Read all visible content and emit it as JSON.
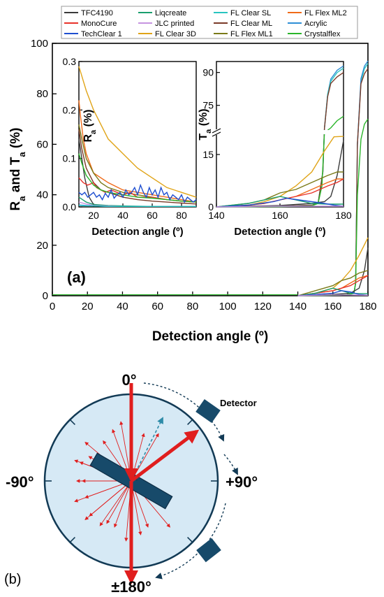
{
  "chart_data": [
    {
      "type": "line",
      "panel_label": "(a)",
      "xlabel": "Detection angle (º)",
      "ylabel_main": "R",
      "ylabel_sub_a": "a",
      "ylabel_mid": " and T",
      "ylabel_sub_b": "a",
      "ylabel_end": " (%)",
      "xlim": [
        0,
        180
      ],
      "ylim": [
        0,
        100
      ],
      "xticks": [
        "0",
        "20",
        "40",
        "60",
        "80",
        "100",
        "120",
        "140",
        "160",
        "180"
      ],
      "yticks": [
        "0",
        "20",
        "40",
        "60",
        "80",
        "100"
      ],
      "legend": [
        {
          "name": "TFC4190",
          "color": "#3a3a3a"
        },
        {
          "name": "Liqcreate",
          "color": "#1a9e6e"
        },
        {
          "name": "FL Clear SL",
          "color": "#28c4c0"
        },
        {
          "name": "FL Flex ML2",
          "color": "#f06a18"
        },
        {
          "name": "MonoCure",
          "color": "#e8322a"
        },
        {
          "name": "JLC printed",
          "color": "#c694e0"
        },
        {
          "name": "FL Clear ML",
          "color": "#7a3a28"
        },
        {
          "name": "Acrylic",
          "color": "#2e8ed6"
        },
        {
          "name": "TechClear 1",
          "color": "#1f4fd0"
        },
        {
          "name": "FL Clear 3D",
          "color": "#e0a418"
        },
        {
          "name": "FL Flex ML1",
          "color": "#7a7a18"
        },
        {
          "name": "Crystalflex",
          "color": "#2ab52a"
        }
      ],
      "series": [
        {
          "name": "FL Clear SL",
          "x": [
            140,
            150,
            160,
            168,
            170,
            172,
            173,
            174,
            176,
            178,
            180
          ],
          "y": [
            0,
            0.1,
            0.2,
            0.4,
            0.6,
            1,
            5,
            60,
            85,
            90,
            92
          ]
        },
        {
          "name": "Acrylic",
          "x": [
            140,
            150,
            160,
            168,
            170,
            172,
            173,
            174,
            176,
            178,
            180
          ],
          "y": [
            0,
            0.1,
            0.2,
            0.4,
            0.6,
            1,
            5,
            60,
            86,
            91,
            93
          ]
        },
        {
          "name": "FL Clear ML",
          "x": [
            140,
            150,
            160,
            168,
            170,
            172,
            173,
            174,
            176,
            178,
            180
          ],
          "y": [
            0,
            0.1,
            0.2,
            0.4,
            0.6,
            1,
            5,
            60,
            84,
            88,
            90
          ]
        },
        {
          "name": "Crystalflex",
          "x": [
            140,
            150,
            160,
            168,
            170,
            172,
            173,
            174,
            176,
            178,
            180
          ],
          "y": [
            0,
            0.1,
            0.2,
            0.4,
            0.6,
            1,
            5,
            40,
            62,
            68,
            70
          ]
        },
        {
          "name": "FL Clear 3D",
          "x": [
            140,
            150,
            160,
            165,
            170,
            175,
            180
          ],
          "y": [
            0,
            1,
            3,
            6,
            10,
            16,
            23
          ]
        },
        {
          "name": "TFC4190",
          "x": [
            140,
            150,
            160,
            170,
            175,
            178,
            180
          ],
          "y": [
            0,
            0.2,
            0.5,
            1,
            3,
            10,
            19
          ]
        },
        {
          "name": "FL Flex ML1",
          "x": [
            140,
            150,
            160,
            165,
            170,
            175,
            180
          ],
          "y": [
            0,
            2,
            4,
            6,
            7,
            9,
            10
          ]
        },
        {
          "name": "FL Flex ML2",
          "x": [
            140,
            150,
            160,
            165,
            170,
            175,
            180
          ],
          "y": [
            0,
            1,
            2,
            3,
            5,
            7,
            8
          ]
        },
        {
          "name": "MonoCure",
          "x": [
            140,
            150,
            160,
            165,
            170,
            175,
            180
          ],
          "y": [
            0,
            1,
            2,
            3,
            4,
            6,
            8
          ]
        },
        {
          "name": "Liqcreate",
          "x": [
            140,
            150,
            160,
            165,
            170,
            175,
            180
          ],
          "y": [
            0,
            1,
            3,
            2,
            1,
            0.8,
            0.8
          ]
        },
        {
          "name": "TechClear 1",
          "x": [
            140,
            150,
            160,
            165,
            170,
            175,
            180
          ],
          "y": [
            0,
            0.5,
            1,
            2,
            1.5,
            0.5,
            0.2
          ]
        },
        {
          "name": "JLC printed",
          "x": [
            140,
            150,
            160,
            170,
            180
          ],
          "y": [
            0,
            0.2,
            0.3,
            0.3,
            0.2
          ]
        }
      ]
    },
    {
      "type": "line",
      "role": "inset-left",
      "xlabel": "Detection angle (º)",
      "ylabel_main": "R",
      "ylabel_sub": "a",
      "ylabel_end": " (%)",
      "xlim": [
        10,
        90
      ],
      "ylim": [
        0,
        0.3
      ],
      "xticks": [
        "20",
        "40",
        "60",
        "80"
      ],
      "yticks": [
        "0.0",
        "0.1",
        "0.2",
        "0.3"
      ],
      "series": [
        {
          "name": "FL Clear 3D",
          "x": [
            10,
            12,
            15,
            20,
            30,
            40,
            50,
            60,
            70,
            80,
            90
          ],
          "y": [
            0.29,
            0.27,
            0.24,
            0.2,
            0.14,
            0.11,
            0.08,
            0.06,
            0.04,
            0.03,
            0.02
          ]
        },
        {
          "name": "FL Flex ML2",
          "x": [
            10,
            11,
            13,
            15,
            20,
            30,
            40,
            50,
            60,
            70,
            80,
            90
          ],
          "y": [
            0.22,
            0.19,
            0.14,
            0.11,
            0.07,
            0.05,
            0.035,
            0.03,
            0.025,
            0.02,
            0.015,
            0.01
          ]
        },
        {
          "name": "FL Flex ML1",
          "x": [
            10,
            12,
            15,
            20,
            25,
            30,
            40,
            50,
            60,
            70,
            80,
            90
          ],
          "y": [
            0.17,
            0.14,
            0.1,
            0.07,
            0.05,
            0.04,
            0.03,
            0.025,
            0.02,
            0.015,
            0.012,
            0.01
          ]
        },
        {
          "name": "FL Clear ML",
          "x": [
            10,
            12,
            15,
            20,
            25,
            30,
            40,
            50,
            60,
            70,
            80,
            90
          ],
          "y": [
            0.16,
            0.12,
            0.08,
            0.05,
            0.035,
            0.03,
            0.02,
            0.015,
            0.012,
            0.01,
            0.008,
            0.006
          ]
        },
        {
          "name": "TFC4190",
          "x": [
            10,
            12,
            14,
            17,
            20,
            25,
            30,
            40,
            60,
            90
          ],
          "y": [
            0.14,
            0.1,
            0.06,
            0.02,
            0.005,
            0.002,
            0.001,
            0.001,
            0.001,
            0.001
          ]
        },
        {
          "name": "MonoCure",
          "x": [
            10,
            13,
            16,
            20,
            22,
            25,
            28,
            32,
            36,
            40,
            45,
            50,
            60,
            70,
            80,
            90
          ],
          "y": [
            0.06,
            0.05,
            0.045,
            0.05,
            0.04,
            0.035,
            0.03,
            0.035,
            0.03,
            0.025,
            0.03,
            0.02,
            0.02,
            0.015,
            0.012,
            0.01
          ]
        },
        {
          "name": "Crystalflex",
          "x": [
            10,
            12,
            15,
            20,
            25,
            30,
            40,
            50,
            60,
            70,
            80,
            90
          ],
          "y": [
            0.11,
            0.09,
            0.065,
            0.045,
            0.035,
            0.03,
            0.025,
            0.02,
            0.018,
            0.015,
            0.012,
            0.01
          ]
        },
        {
          "name": "TechClear 1",
          "x": [
            10,
            12,
            14,
            16,
            18,
            20,
            22,
            24,
            26,
            28,
            30,
            32,
            34,
            36,
            38,
            40,
            42,
            44,
            46,
            48,
            50,
            52,
            54,
            56,
            58,
            60,
            62,
            64,
            66,
            68,
            70,
            72,
            74,
            76,
            78,
            80,
            82,
            84,
            86,
            88,
            90
          ],
          "y": [
            0.03,
            0.025,
            0.03,
            0.02,
            0.025,
            0.03,
            0.02,
            0.025,
            0.015,
            0.028,
            0.02,
            0.035,
            0.018,
            0.025,
            0.03,
            0.02,
            0.035,
            0.025,
            0.03,
            0.04,
            0.025,
            0.045,
            0.03,
            0.02,
            0.04,
            0.025,
            0.035,
            0.02,
            0.04,
            0.025,
            0.03,
            0.015,
            0.025,
            0.02,
            0.015,
            0.025,
            0.01,
            0.02,
            0.015,
            0.01,
            0.015
          ]
        },
        {
          "name": "Liqcreate",
          "x": [
            10,
            15,
            20,
            30,
            40,
            60,
            90
          ],
          "y": [
            0.02,
            0.01,
            0.005,
            0.003,
            0.002,
            0.001,
            0.001
          ]
        },
        {
          "name": "JLC printed",
          "x": [
            10,
            15,
            20,
            30,
            40,
            60,
            90
          ],
          "y": [
            0.01,
            0.006,
            0.003,
            0.002,
            0.001,
            0.001,
            0.001
          ]
        },
        {
          "name": "Acrylic",
          "x": [
            10,
            15,
            20,
            30,
            40,
            60,
            90
          ],
          "y": [
            0.004,
            0.003,
            0.002,
            0.001,
            0.001,
            0.001,
            0.001
          ]
        },
        {
          "name": "FL Clear SL",
          "x": [
            10,
            15,
            20,
            30,
            40,
            60,
            90
          ],
          "y": [
            0.003,
            0.002,
            0.002,
            0.001,
            0.001,
            0.001,
            0.001
          ]
        }
      ]
    },
    {
      "type": "line",
      "role": "inset-right",
      "xlabel": "Detection angle (º)",
      "ylabel_main": "T",
      "ylabel_sub": "a",
      "ylabel_end": " (%)",
      "xlim": [
        140,
        180
      ],
      "axis_break": true,
      "yticks_low": [
        "0",
        "15"
      ],
      "yticks_high": [
        "75",
        "90"
      ],
      "series": [
        {
          "name": "Acrylic",
          "x": [
            140,
            160,
            170,
            172,
            173.5,
            174,
            175,
            176,
            178,
            180
          ],
          "y": [
            0,
            0.2,
            0.5,
            1,
            10,
            60,
            80,
            87,
            91,
            93
          ]
        },
        {
          "name": "FL Clear SL",
          "x": [
            140,
            160,
            170,
            172,
            173.5,
            174,
            175,
            176,
            178,
            180
          ],
          "y": [
            0,
            0.2,
            0.5,
            1,
            10,
            60,
            80,
            86,
            90,
            92
          ]
        },
        {
          "name": "FL Clear ML",
          "x": [
            140,
            160,
            170,
            172,
            173.5,
            174,
            175,
            176,
            178,
            180
          ],
          "y": [
            0,
            0.2,
            0.5,
            1,
            10,
            60,
            79,
            85,
            88,
            90
          ]
        },
        {
          "name": "Crystalflex",
          "x": [
            140,
            160,
            170,
            172,
            173.2,
            174,
            176,
            178,
            180
          ],
          "y": [
            0,
            0.1,
            0.3,
            1,
            6,
            40,
            62,
            68,
            70
          ]
        },
        {
          "name": "FL Clear 3D",
          "x": [
            140,
            150,
            155,
            160,
            165,
            170,
            174,
            177,
            180
          ],
          "y": [
            0,
            0.5,
            1.5,
            3,
            6,
            10,
            16,
            21,
            23
          ]
        },
        {
          "name": "TFC4190",
          "x": [
            140,
            150,
            160,
            170,
            174,
            176,
            178,
            180
          ],
          "y": [
            0,
            0.2,
            0.4,
            1,
            1.5,
            3,
            9,
            19
          ]
        },
        {
          "name": "FL Flex ML1",
          "x": [
            140,
            150,
            155,
            160,
            165,
            170,
            175,
            178,
            180
          ],
          "y": [
            0,
            1,
            2,
            4,
            5,
            7,
            9,
            10,
            10
          ]
        },
        {
          "name": "FL Flex ML2",
          "x": [
            140,
            150,
            155,
            160,
            165,
            170,
            175,
            178,
            180
          ],
          "y": [
            0,
            0.5,
            1,
            2,
            3,
            5,
            7,
            8,
            8
          ]
        },
        {
          "name": "MonoCure",
          "x": [
            140,
            150,
            155,
            160,
            165,
            170,
            175,
            178,
            180
          ],
          "y": [
            0,
            0.5,
            1,
            2,
            3,
            4,
            6,
            7,
            8
          ]
        },
        {
          "name": "Liqcreate",
          "x": [
            140,
            150,
            155,
            160,
            165,
            170,
            175,
            180
          ],
          "y": [
            0,
            1,
            2,
            3,
            2,
            1,
            0.8,
            0.8
          ]
        },
        {
          "name": "TechClear 1",
          "x": [
            140,
            150,
            158,
            162,
            166,
            170,
            174,
            177,
            180
          ],
          "y": [
            0,
            0.5,
            1.5,
            2.5,
            2,
            1.5,
            1,
            0.5,
            0.2
          ]
        },
        {
          "name": "JLC printed",
          "x": [
            140,
            160,
            180
          ],
          "y": [
            0,
            0.2,
            0.2
          ]
        }
      ]
    }
  ],
  "diagram": {
    "panel_label": "(b)",
    "label_top": "0°",
    "label_left": "-90°",
    "label_right": "+90°",
    "label_bottom": "±180°",
    "detector_label": "Detector"
  }
}
